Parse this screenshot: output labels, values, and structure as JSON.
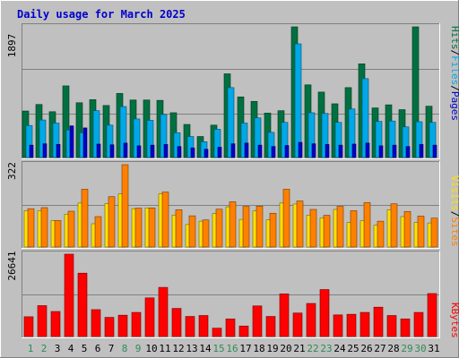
{
  "title": "Daily usage for March 2025",
  "colors": {
    "background": "#c0c0c0",
    "title": "#0000cc",
    "hits": "#007040",
    "files": "#00a8e8",
    "pages": "#0000cc",
    "visits": "#ffe000",
    "sites": "#ff8000",
    "kbytes": "#ff0000",
    "weekday_label": "#000000",
    "weekend_label": "#2e8b57"
  },
  "chart_data": [
    {
      "type": "bar",
      "panel": "hits-files-pages",
      "categories": [
        "1",
        "2",
        "3",
        "4",
        "5",
        "6",
        "7",
        "8",
        "9",
        "10",
        "11",
        "12",
        "13",
        "14",
        "15",
        "16",
        "17",
        "18",
        "19",
        "20",
        "21",
        "22",
        "23",
        "24",
        "25",
        "26",
        "27",
        "28",
        "29",
        "30",
        "31"
      ],
      "weekend_days": [
        "1",
        "2",
        "8",
        "9",
        "15",
        "16",
        "22",
        "23",
        "29",
        "30"
      ],
      "ymax_label": "1897",
      "ylim": [
        0,
        1897
      ],
      "series": [
        {
          "name": "Hits",
          "values": [
            675,
            770,
            665,
            1040,
            795,
            840,
            755,
            930,
            835,
            835,
            830,
            650,
            480,
            305,
            470,
            1215,
            880,
            815,
            645,
            680,
            1897,
            1055,
            950,
            780,
            1015,
            1360,
            720,
            765,
            695,
            1897,
            745
          ]
        },
        {
          "name": "Files",
          "values": [
            465,
            545,
            500,
            400,
            360,
            680,
            470,
            740,
            560,
            540,
            625,
            360,
            305,
            230,
            410,
            1015,
            500,
            575,
            365,
            510,
            1650,
            650,
            640,
            510,
            705,
            1145,
            525,
            530,
            445,
            520,
            510
          ]
        },
        {
          "name": "Pages",
          "values": [
            180,
            200,
            190,
            460,
            430,
            195,
            185,
            210,
            170,
            180,
            190,
            160,
            140,
            120,
            150,
            200,
            210,
            180,
            160,
            175,
            220,
            200,
            190,
            180,
            195,
            210,
            170,
            180,
            160,
            190,
            180
          ]
        }
      ],
      "legend": [
        "Hits",
        "Files",
        "Pages"
      ]
    },
    {
      "type": "bar",
      "panel": "visits-sites",
      "categories": [
        "1",
        "2",
        "3",
        "4",
        "5",
        "6",
        "7",
        "8",
        "9",
        "10",
        "11",
        "12",
        "13",
        "14",
        "15",
        "16",
        "17",
        "18",
        "19",
        "20",
        "21",
        "22",
        "23",
        "24",
        "25",
        "26",
        "27",
        "28",
        "29",
        "30",
        "31"
      ],
      "ymax_label": "322",
      "ylim": [
        0,
        322
      ],
      "series": [
        {
          "name": "Visits",
          "values": [
            142,
            142,
            103,
            128,
            172,
            91,
            170,
            208,
            150,
            153,
            208,
            125,
            88,
            101,
            131,
            157,
            108,
            141,
            106,
            172,
            168,
            125,
            113,
            147,
            96,
            103,
            85,
            146,
            119,
            96,
            94
          ]
        },
        {
          "name": "Sites",
          "values": [
            150,
            154,
            104,
            140,
            226,
            119,
            197,
            322,
            152,
            153,
            215,
            146,
            122,
            106,
            148,
            177,
            159,
            160,
            132,
            226,
            180,
            147,
            124,
            159,
            142,
            174,
            101,
            169,
            139,
            121,
            113
          ]
        }
      ],
      "legend": [
        "Visits",
        "Sites"
      ]
    },
    {
      "type": "bar",
      "panel": "kbytes",
      "categories": [
        "1",
        "2",
        "3",
        "4",
        "5",
        "6",
        "7",
        "8",
        "9",
        "10",
        "11",
        "12",
        "13",
        "14",
        "15",
        "16",
        "17",
        "18",
        "19",
        "20",
        "21",
        "22",
        "23",
        "24",
        "25",
        "26",
        "27",
        "28",
        "29",
        "30",
        "31"
      ],
      "ymax_label": "26641",
      "ylim": [
        0,
        26641
      ],
      "series": [
        {
          "name": "KBytes",
          "values": [
            6400,
            10000,
            8100,
            26641,
            20500,
            8700,
            6200,
            6900,
            7800,
            12500,
            15900,
            9100,
            6500,
            6800,
            2700,
            5700,
            3400,
            9900,
            6500,
            13800,
            7600,
            10700,
            15200,
            7000,
            7200,
            7800,
            9500,
            6800,
            5700,
            7800,
            13900
          ]
        }
      ],
      "legend": [
        "KBytes"
      ]
    }
  ]
}
